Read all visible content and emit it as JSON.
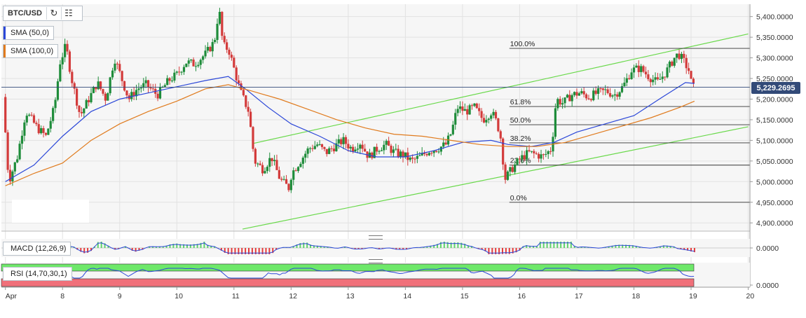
{
  "toolbar": {
    "symbol": "BTC/USD",
    "reload_icon": "reload-icon",
    "calendar_icon": "calendar-icon"
  },
  "indicators": {
    "sma50": {
      "label": "SMA (50,0)",
      "color": "#2b47d8"
    },
    "sma100": {
      "label": "SMA (100,0)",
      "color": "#e07b1e"
    },
    "macd": {
      "label": "MACD (12,26,9)"
    },
    "rsi": {
      "label": "RSI (14,70,30,1)"
    }
  },
  "colors": {
    "up": "#1e8c3a",
    "down": "#d33b3b",
    "channel": "#69d94a",
    "fib": "#333333",
    "price_line": "#324a78",
    "macd_line": "#2b47d8",
    "macd_hist_pos": "#5fd36a",
    "macd_hist_neg": "#e53a3a",
    "rsi_line": "#2b47d8",
    "rsi_overbought": "#6ee86a",
    "rsi_oversold": "#f0707a"
  },
  "current_price": "5,229.2695",
  "chart_data": {
    "type": "candlestick",
    "title": "",
    "xlabel": "",
    "ylabel": "",
    "x_ticks": [
      "Apr",
      "8",
      "9",
      "10",
      "11",
      "12",
      "13",
      "14",
      "15",
      "16",
      "17",
      "18",
      "19",
      "20"
    ],
    "x_tick_days": [
      7,
      8,
      9,
      10,
      11,
      12,
      13,
      14,
      15,
      16,
      17,
      18,
      19,
      20
    ],
    "x_range_days": [
      6.93,
      20.03
    ],
    "y_ticks": [
      "5,400.0000",
      "5,350.0000",
      "5,300.0000",
      "5,250.0000",
      "5,200.0000",
      "5,150.0000",
      "5,100.0000",
      "5,050.0000",
      "5,000.0000",
      "4,950.0000",
      "4,900.0000"
    ],
    "y_tick_values": [
      5400,
      5350,
      5300,
      5250,
      5200,
      5150,
      5100,
      5050,
      5000,
      4950,
      4900
    ],
    "ylim": [
      4880,
      5430
    ],
    "grid": true,
    "price_path": [
      [
        7.0,
        5205
      ],
      [
        7.1,
        5000
      ],
      [
        7.25,
        5060
      ],
      [
        7.4,
        5170
      ],
      [
        7.6,
        5130
      ],
      [
        7.75,
        5110
      ],
      [
        7.9,
        5180
      ],
      [
        8.0,
        5290
      ],
      [
        8.1,
        5330
      ],
      [
        8.2,
        5250
      ],
      [
        8.35,
        5160
      ],
      [
        8.5,
        5200
      ],
      [
        8.65,
        5240
      ],
      [
        8.8,
        5200
      ],
      [
        8.95,
        5300
      ],
      [
        9.05,
        5260
      ],
      [
        9.2,
        5200
      ],
      [
        9.35,
        5225
      ],
      [
        9.5,
        5235
      ],
      [
        9.7,
        5210
      ],
      [
        9.9,
        5245
      ],
      [
        10.05,
        5260
      ],
      [
        10.2,
        5290
      ],
      [
        10.35,
        5285
      ],
      [
        10.55,
        5310
      ],
      [
        10.7,
        5340
      ],
      [
        10.78,
        5420
      ],
      [
        10.85,
        5330
      ],
      [
        10.95,
        5320
      ],
      [
        11.05,
        5270
      ],
      [
        11.15,
        5220
      ],
      [
        11.3,
        5170
      ],
      [
        11.4,
        5050
      ],
      [
        11.55,
        5030
      ],
      [
        11.7,
        5060
      ],
      [
        11.85,
        5005
      ],
      [
        12.0,
        4985
      ],
      [
        12.05,
        5020
      ],
      [
        12.2,
        5050
      ],
      [
        12.35,
        5080
      ],
      [
        12.5,
        5090
      ],
      [
        12.65,
        5070
      ],
      [
        12.8,
        5085
      ],
      [
        12.95,
        5100
      ],
      [
        13.1,
        5080
      ],
      [
        13.25,
        5095
      ],
      [
        13.4,
        5060
      ],
      [
        13.55,
        5080
      ],
      [
        13.7,
        5090
      ],
      [
        13.85,
        5070
      ],
      [
        14.0,
        5065
      ],
      [
        14.15,
        5050
      ],
      [
        14.3,
        5060
      ],
      [
        14.45,
        5075
      ],
      [
        14.6,
        5080
      ],
      [
        14.75,
        5090
      ],
      [
        14.85,
        5120
      ],
      [
        14.95,
        5180
      ],
      [
        15.1,
        5170
      ],
      [
        15.25,
        5180
      ],
      [
        15.4,
        5150
      ],
      [
        15.55,
        5170
      ],
      [
        15.65,
        5140
      ],
      [
        15.72,
        5100
      ],
      [
        15.78,
        5005
      ],
      [
        15.9,
        5030
      ],
      [
        16.05,
        5055
      ],
      [
        16.2,
        5070
      ],
      [
        16.35,
        5065
      ],
      [
        16.45,
        5060
      ],
      [
        16.6,
        5080
      ],
      [
        16.68,
        5200
      ],
      [
        16.8,
        5190
      ],
      [
        16.95,
        5210
      ],
      [
        17.1,
        5215
      ],
      [
        17.25,
        5205
      ],
      [
        17.4,
        5215
      ],
      [
        17.55,
        5220
      ],
      [
        17.7,
        5210
      ],
      [
        17.85,
        5230
      ],
      [
        18.0,
        5270
      ],
      [
        18.15,
        5275
      ],
      [
        18.3,
        5255
      ],
      [
        18.45,
        5240
      ],
      [
        18.6,
        5265
      ],
      [
        18.75,
        5300
      ],
      [
        18.82,
        5310
      ],
      [
        18.92,
        5290
      ],
      [
        19.0,
        5270
      ],
      [
        19.06,
        5229
      ]
    ],
    "series": [
      {
        "name": "SMA (50,0)",
        "points": [
          [
            7.0,
            5000
          ],
          [
            7.5,
            5040
          ],
          [
            8.0,
            5110
          ],
          [
            8.5,
            5170
          ],
          [
            9.0,
            5200
          ],
          [
            9.5,
            5215
          ],
          [
            10.0,
            5230
          ],
          [
            10.5,
            5245
          ],
          [
            10.9,
            5255
          ],
          [
            11.2,
            5225
          ],
          [
            11.6,
            5180
          ],
          [
            12.0,
            5140
          ],
          [
            12.5,
            5110
          ],
          [
            13.0,
            5075
          ],
          [
            13.5,
            5060
          ],
          [
            14.0,
            5060
          ],
          [
            14.5,
            5075
          ],
          [
            15.0,
            5095
          ],
          [
            15.5,
            5100
          ],
          [
            15.8,
            5090
          ],
          [
            16.2,
            5085
          ],
          [
            16.6,
            5095
          ],
          [
            17.0,
            5120
          ],
          [
            17.5,
            5140
          ],
          [
            18.0,
            5160
          ],
          [
            18.5,
            5205
          ],
          [
            18.9,
            5240
          ],
          [
            19.06,
            5238
          ]
        ]
      },
      {
        "name": "SMA (100,0)",
        "points": [
          [
            7.0,
            4990
          ],
          [
            7.5,
            5020
          ],
          [
            8.0,
            5045
          ],
          [
            8.5,
            5100
          ],
          [
            9.0,
            5140
          ],
          [
            9.5,
            5170
          ],
          [
            10.0,
            5195
          ],
          [
            10.5,
            5225
          ],
          [
            10.9,
            5235
          ],
          [
            11.3,
            5220
          ],
          [
            11.8,
            5200
          ],
          [
            12.3,
            5175
          ],
          [
            12.8,
            5150
          ],
          [
            13.3,
            5130
          ],
          [
            13.8,
            5115
          ],
          [
            14.3,
            5110
          ],
          [
            14.8,
            5100
          ],
          [
            15.3,
            5090
          ],
          [
            15.8,
            5085
          ],
          [
            16.3,
            5085
          ],
          [
            16.8,
            5095
          ],
          [
            17.3,
            5115
          ],
          [
            17.8,
            5135
          ],
          [
            18.3,
            5155
          ],
          [
            18.8,
            5180
          ],
          [
            19.06,
            5195
          ]
        ]
      }
    ],
    "channel": {
      "upper": [
        [
          11.35,
          5093
        ],
        [
          20.0,
          5358
        ]
      ],
      "lower": [
        [
          11.15,
          4885
        ],
        [
          20.0,
          5133
        ]
      ]
    },
    "fibonacci": {
      "x_range_days": [
        15.82,
        20.03
      ],
      "levels": [
        {
          "label": "100.0%",
          "value": 5323
        },
        {
          "label": "61.8%",
          "value": 5182
        },
        {
          "label": "50.0%",
          "value": 5138
        },
        {
          "label": "38.2%",
          "value": 5094
        },
        {
          "label": "23.6%",
          "value": 5040
        },
        {
          "label": "0.0%",
          "value": 4950
        }
      ]
    },
    "macd": {
      "y_ticks": [
        "0.0000"
      ],
      "y_tick_values": [
        0
      ]
    },
    "rsi": {
      "y_ticks": [
        "0.0000"
      ],
      "y_tick_values": [
        0
      ]
    }
  }
}
